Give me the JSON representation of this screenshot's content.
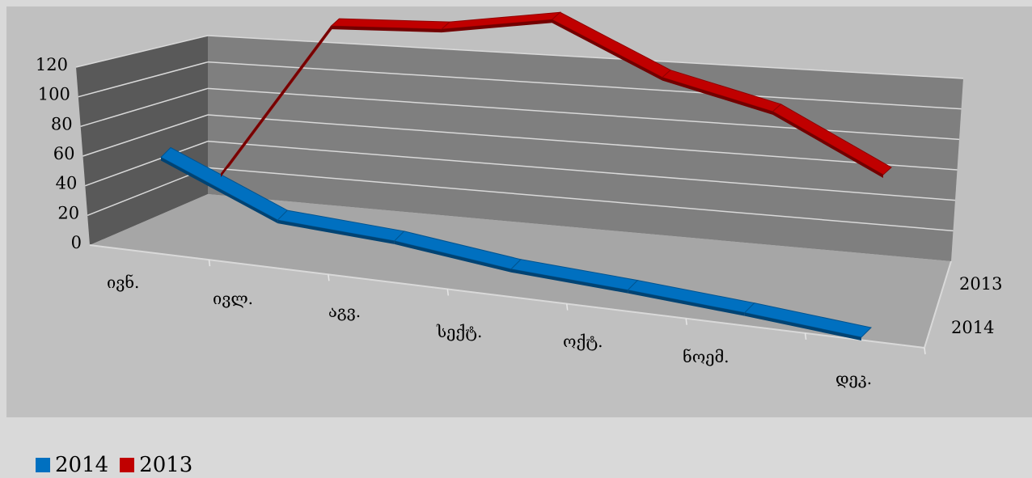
{
  "chart_data": {
    "type": "line",
    "categories": [
      "ივნ.",
      "ივლ.",
      "აგვ.",
      "სექტ.",
      "ოქტ.",
      "ნოემ.",
      "დეკ."
    ],
    "series": [
      {
        "name": "2014",
        "values": [
          30,
          5,
          3,
          -3,
          -5,
          -8,
          -12
        ],
        "color": "#0070c0"
      },
      {
        "name": "2013",
        "values": [
          10,
          98,
          103,
          115,
          90,
          78,
          50
        ],
        "color": "#c00000"
      }
    ],
    "ylim": [
      0,
      120
    ],
    "yticks": [
      "0",
      "20",
      "40",
      "60",
      "80",
      "100",
      "120"
    ],
    "depth_labels": [
      "2013",
      "2014"
    ],
    "grid": true,
    "legend": "bottom-left",
    "title": "",
    "xlabel": "",
    "ylabel": ""
  }
}
